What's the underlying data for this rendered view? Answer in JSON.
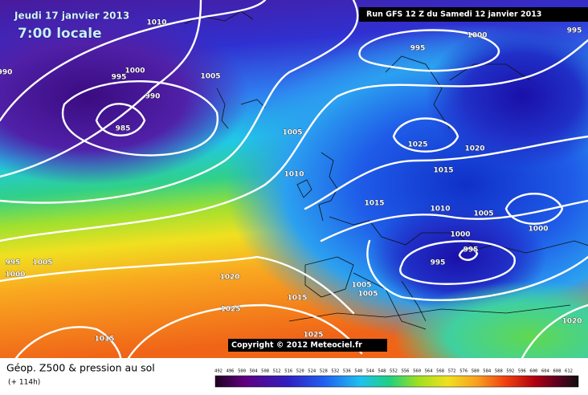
{
  "header": {
    "date": "Jeudi 17 janvier 2013",
    "time": "7:00 locale",
    "run": "Run GFS 12 Z du Samedi 12 janvier 2013"
  },
  "isobars": [
    1010,
    995,
    1000,
    995,
    990,
    995,
    1000,
    1005,
    990,
    985,
    1005,
    1025,
    1020,
    1015,
    1010,
    1015,
    1010,
    1005,
    1000,
    1000,
    995,
    995,
    995,
    1005,
    1000,
    1020,
    1005,
    1005,
    1015,
    1025,
    1025,
    1015,
    1020
  ],
  "copyright": "Copyright © 2012 Meteociel.fr",
  "footer": {
    "title": "Géop. Z500 & pression au sol",
    "lead": "(+ 114h)"
  },
  "legend": {
    "values": [
      492,
      496,
      500,
      504,
      508,
      512,
      516,
      520,
      524,
      528,
      532,
      536,
      540,
      544,
      548,
      552,
      556,
      560,
      564,
      568,
      572,
      576,
      580,
      584,
      588,
      592,
      596,
      600,
      604,
      608,
      612
    ]
  }
}
